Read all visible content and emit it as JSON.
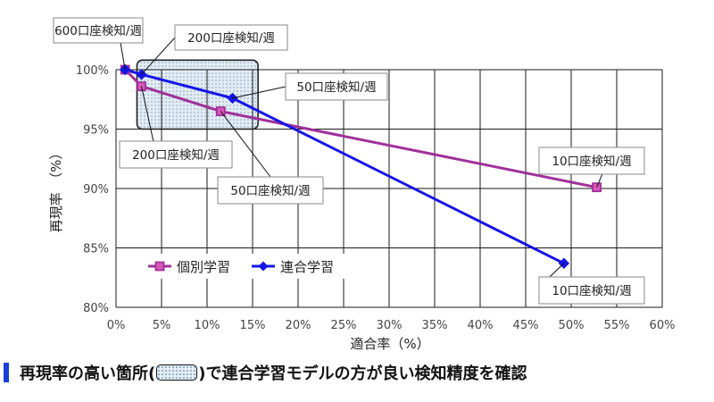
{
  "chart_data": {
    "type": "line",
    "xlabel": "適合率（%）",
    "ylabel": "再現率　（%）",
    "xlim": [
      0,
      60
    ],
    "ylim": [
      80,
      100
    ],
    "x_ticks": [
      "0%",
      "5%",
      "10%",
      "15%",
      "20%",
      "25%",
      "30%",
      "35%",
      "40%",
      "45%",
      "50%",
      "55%",
      "60%"
    ],
    "y_ticks": [
      "80%",
      "85%",
      "90%",
      "95%",
      "100%"
    ],
    "grid": true,
    "legend_position": "bottom-left",
    "series": [
      {
        "name": "個別学習",
        "color": "#a0309a",
        "marker": "square",
        "points": [
          {
            "x": 1.0,
            "y": 100.0
          },
          {
            "x": 2.8,
            "y": 98.6
          },
          {
            "x": 11.5,
            "y": 96.5
          },
          {
            "x": 52.8,
            "y": 90.1
          }
        ]
      },
      {
        "name": "連合学習",
        "color": "#1515e6",
        "marker": "diamond",
        "points": [
          {
            "x": 1.0,
            "y": 100.0
          },
          {
            "x": 2.8,
            "y": 99.6
          },
          {
            "x": 12.8,
            "y": 97.6
          },
          {
            "x": 49.2,
            "y": 83.7
          }
        ]
      }
    ],
    "annotations": [
      {
        "text": "600口座検知/週",
        "x": 1.0,
        "y": 100.0
      },
      {
        "text": "200口座検知/週",
        "x": 2.8,
        "y": 99.6
      },
      {
        "text": "50口座検知/週",
        "x": 12.8,
        "y": 97.6
      },
      {
        "text": "200口座検知/週",
        "x": 2.8,
        "y": 98.6
      },
      {
        "text": "50口座検知/週",
        "x": 11.5,
        "y": 96.5
      },
      {
        "text": "10口座検知/週",
        "x": 52.8,
        "y": 90.1
      },
      {
        "text": "10口座検知/週",
        "x": 49.2,
        "y": 83.7
      }
    ],
    "highlight": {
      "x": [
        2.3,
        15.6
      ],
      "y": [
        95.0,
        100.8
      ]
    }
  },
  "footer": {
    "before": "再現率の高い箇所(",
    "after": ")で連合学習モデルの方が良い検知精度を確認"
  }
}
